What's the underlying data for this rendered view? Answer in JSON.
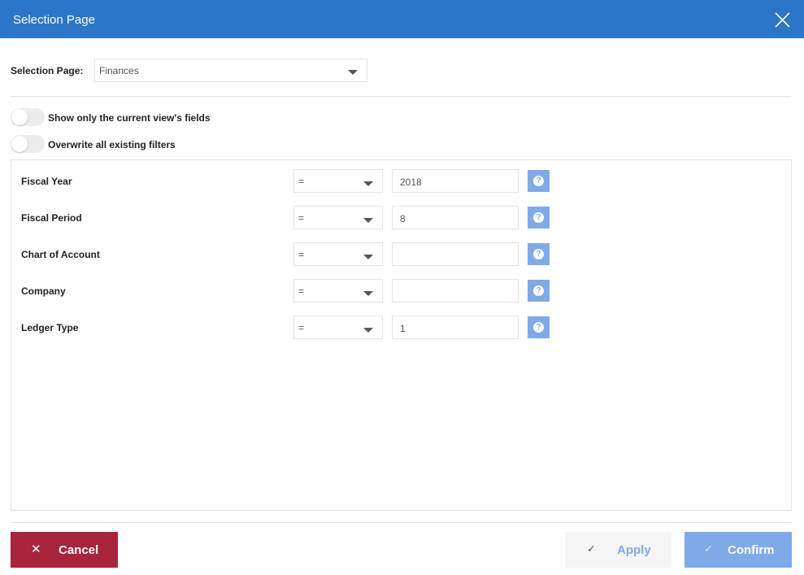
{
  "header": {
    "title": "Selection Page",
    "close_icon": "close-icon"
  },
  "selection_page": {
    "label": "Selection Page:",
    "value": "Finances"
  },
  "toggles": [
    {
      "label": "Show only the current view's fields",
      "on": false
    },
    {
      "label": "Overwrite all existing filters",
      "on": false
    }
  ],
  "filters": [
    {
      "label": "Fiscal Year",
      "operator": "=",
      "value": "2018"
    },
    {
      "label": "Fiscal Period",
      "operator": "=",
      "value": "8"
    },
    {
      "label": "Chart of Account",
      "operator": "=",
      "value": ""
    },
    {
      "label": "Company",
      "operator": "=",
      "value": ""
    },
    {
      "label": "Ledger Type",
      "operator": "=",
      "value": "1"
    }
  ],
  "footer": {
    "cancel": "Cancel",
    "apply": "Apply",
    "confirm": "Confirm"
  },
  "colors": {
    "header": "#2b76c8",
    "cancel": "#a8243a",
    "confirm": "#7eaaea",
    "apply_bg": "#f5f5f5"
  }
}
